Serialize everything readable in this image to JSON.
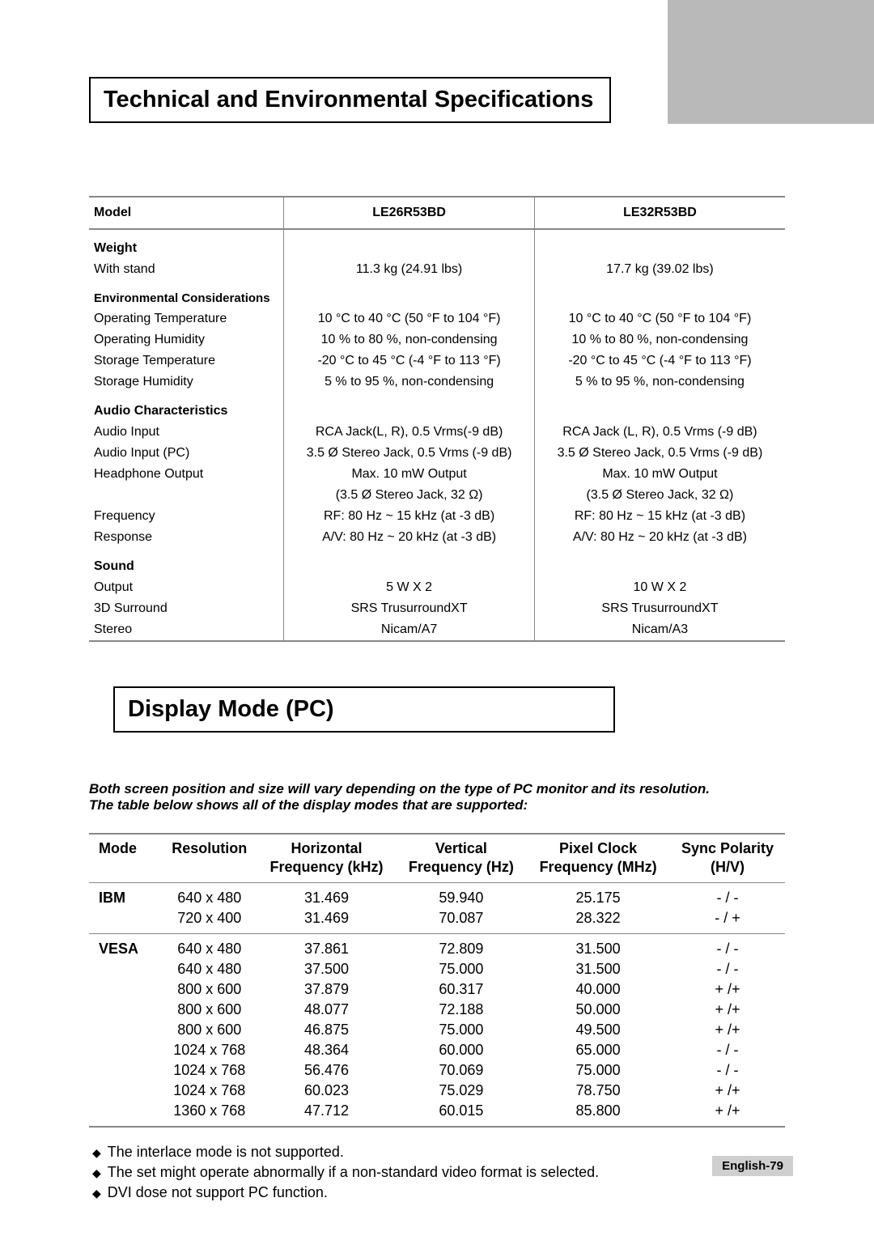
{
  "section1_title": "Technical and Environmental Specifications",
  "spec": {
    "headers": {
      "model": "Model",
      "col2": "LE26R53BD",
      "col3": "LE32R53BD"
    },
    "weight": {
      "heading": "Weight",
      "with_stand_label": "With stand",
      "with_stand_a": "11.3 kg (24.91 lbs)",
      "with_stand_b": "17.7 kg (39.02 lbs)"
    },
    "env": {
      "heading": "Environmental Considerations",
      "rows": [
        {
          "label": "Operating Temperature",
          "a": "10 °C to 40 °C (50 °F to 104 °F)",
          "b": "10 °C to 40 °C (50 °F to 104 °F)"
        },
        {
          "label": "Operating Humidity",
          "a": "10 % to 80 %, non-condensing",
          "b": "10 % to 80 %, non-condensing"
        },
        {
          "label": "Storage Temperature",
          "a": "-20 °C to 45 °C (-4 °F to 113 °F)",
          "b": "-20 °C to 45 °C (-4 °F to 113 °F)"
        },
        {
          "label": "Storage Humidity",
          "a": "5 % to 95 %, non-condensing",
          "b": "5 % to 95 %, non-condensing"
        }
      ]
    },
    "audio": {
      "heading": "Audio Characteristics",
      "rows": [
        {
          "label": "Audio Input",
          "a": "RCA Jack(L, R), 0.5 Vrms(-9 dB)",
          "b": "RCA Jack (L, R), 0.5 Vrms (-9 dB)"
        },
        {
          "label": "Audio Input (PC)",
          "a": "3.5 Ø Stereo Jack, 0.5 Vrms (-9 dB)",
          "b": "3.5 Ø Stereo Jack, 0.5 Vrms (-9 dB)"
        },
        {
          "label": "Headphone Output",
          "a": "Max. 10 mW Output",
          "b": "Max. 10 mW Output"
        },
        {
          "label": "",
          "a": "(3.5 Ø Stereo Jack, 32 Ω)",
          "b": "(3.5 Ø Stereo Jack, 32 Ω)"
        },
        {
          "label": "Frequency",
          "a": "RF: 80 Hz ~ 15 kHz (at -3 dB)",
          "b": "RF: 80 Hz ~ 15 kHz (at -3 dB)"
        },
        {
          "label": "Response",
          "a": "A/V: 80 Hz ~ 20 kHz (at -3 dB)",
          "b": "A/V: 80 Hz ~ 20 kHz (at -3 dB)"
        }
      ]
    },
    "sound": {
      "heading": "Sound",
      "rows": [
        {
          "label": "Output",
          "a": "5 W X 2",
          "b": "10 W X 2"
        },
        {
          "label": "3D Surround",
          "a": "SRS TrusurroundXT",
          "b": "SRS TrusurroundXT"
        },
        {
          "label": "Stereo",
          "a": "Nicam/A7",
          "b": "Nicam/A3"
        }
      ]
    }
  },
  "section2_title": "Display Mode (PC)",
  "intro_1": "Both screen position and size will vary depending on the type of PC monitor and its resolution.",
  "intro_2": "The table below shows all of the display modes that are supported:",
  "display": {
    "headers": {
      "mode": "Mode",
      "resolution": "Resolution",
      "hfreq_1": "Horizontal",
      "hfreq_2": "Frequency (kHz)",
      "vfreq_1": "Vertical",
      "vfreq_2": "Frequency (Hz)",
      "pclk_1": "Pixel Clock",
      "pclk_2": "Frequency (MHz)",
      "sync_1": "Sync Polarity",
      "sync_2": "(H/V)"
    },
    "groups": [
      {
        "mode": "IBM",
        "rows": [
          {
            "res": "640 x 480",
            "h": "31.469",
            "v": "59.940",
            "p": "25.175",
            "s": "- / -"
          },
          {
            "res": "720 x 400",
            "h": "31.469",
            "v": "70.087",
            "p": "28.322",
            "s": "- / +"
          }
        ]
      },
      {
        "mode": "VESA",
        "rows": [
          {
            "res": "640 x 480",
            "h": "37.861",
            "v": "72.809",
            "p": "31.500",
            "s": "- / -"
          },
          {
            "res": "640 x 480",
            "h": "37.500",
            "v": "75.000",
            "p": "31.500",
            "s": "- / -"
          },
          {
            "res": "800 x 600",
            "h": "37.879",
            "v": "60.317",
            "p": "40.000",
            "s": "+ /+"
          },
          {
            "res": "800 x 600",
            "h": "48.077",
            "v": "72.188",
            "p": "50.000",
            "s": "+ /+"
          },
          {
            "res": "800 x 600",
            "h": "46.875",
            "v": "75.000",
            "p": "49.500",
            "s": "+ /+"
          },
          {
            "res": "1024 x 768",
            "h": "48.364",
            "v": "60.000",
            "p": "65.000",
            "s": "- / -"
          },
          {
            "res": "1024 x 768",
            "h": "56.476",
            "v": "70.069",
            "p": "75.000",
            "s": "- / -"
          },
          {
            "res": "1024 x 768",
            "h": "60.023",
            "v": "75.029",
            "p": "78.750",
            "s": "+ /+"
          },
          {
            "res": "1360 x 768",
            "h": "47.712",
            "v": "60.015",
            "p": "85.800",
            "s": "+ /+"
          }
        ]
      }
    ]
  },
  "notes": [
    "The interlace mode is not supported.",
    "The set might operate abnormally if a non-standard video format is selected.",
    "DVI dose not support PC function."
  ],
  "page_number": "English-79"
}
